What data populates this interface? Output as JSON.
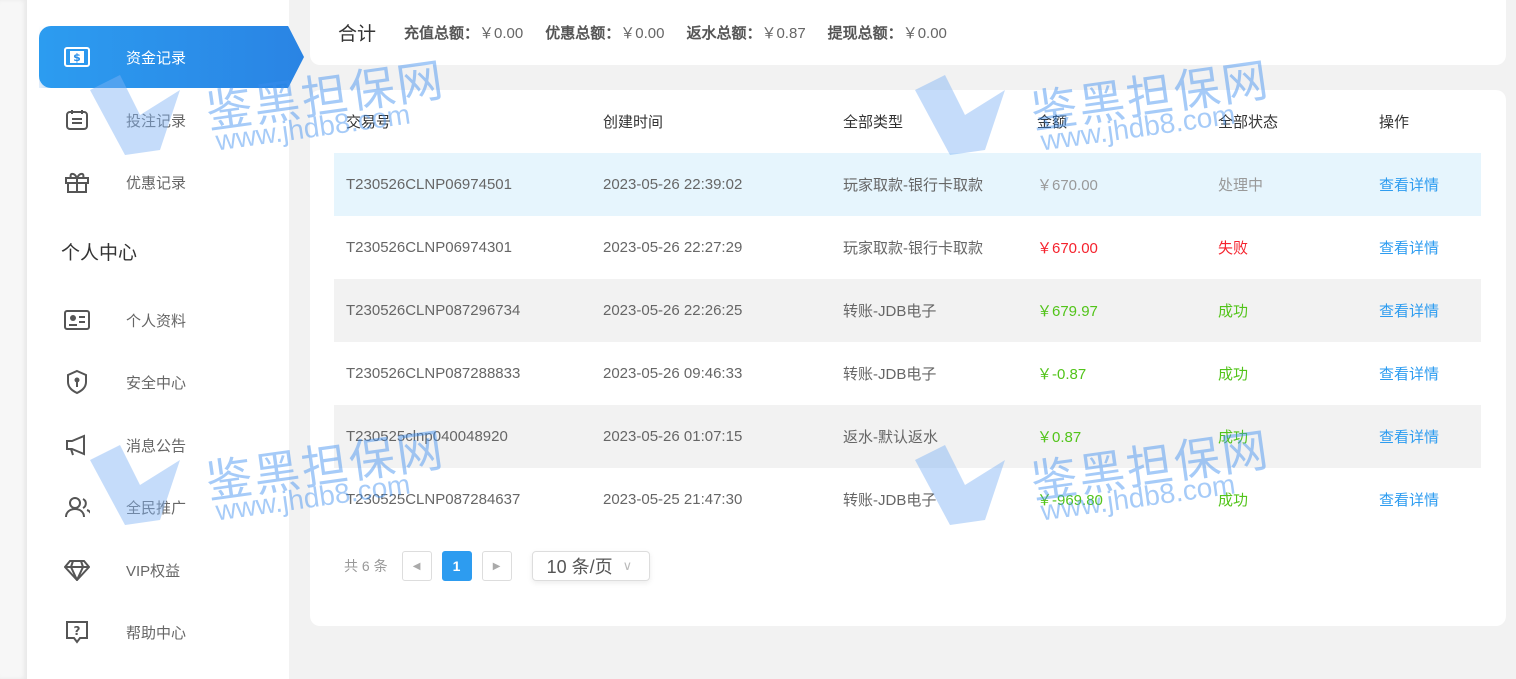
{
  "sidebar": {
    "items": [
      {
        "label": "资金记录",
        "icon": "money-ticket-icon",
        "active": true
      },
      {
        "label": "投注记录",
        "icon": "calendar-list-icon"
      },
      {
        "label": "优惠记录",
        "icon": "gift-icon"
      }
    ],
    "section_title": "个人中心",
    "personal": [
      {
        "label": "个人资料",
        "icon": "id-card-icon"
      },
      {
        "label": "安全中心",
        "icon": "shield-icon"
      },
      {
        "label": "消息公告",
        "icon": "megaphone-icon"
      },
      {
        "label": "全民推广",
        "icon": "users-icon"
      },
      {
        "label": "VIP权益",
        "icon": "diamond-icon"
      },
      {
        "label": "帮助中心",
        "icon": "help-icon"
      }
    ]
  },
  "summary": {
    "title": "合计",
    "items": [
      {
        "label": "充值总额：",
        "value": "￥0.00"
      },
      {
        "label": "优惠总额：",
        "value": "￥0.00"
      },
      {
        "label": "返水总额：",
        "value": "￥0.87"
      },
      {
        "label": "提现总额：",
        "value": "￥0.00"
      }
    ]
  },
  "table": {
    "headers": [
      "交易号",
      "创建时间",
      "全部类型",
      "金额",
      "全部状态",
      "操作"
    ],
    "rows": [
      {
        "id": "T230526CLNP06974501",
        "time": "2023-05-26 22:39:02",
        "type": "玩家取款-银行卡取款",
        "amount": "￥670.00",
        "status": "处理中",
        "action": "查看详情",
        "tone": "pending"
      },
      {
        "id": "T230526CLNP06974301",
        "time": "2023-05-26 22:27:29",
        "type": "玩家取款-银行卡取款",
        "amount": "￥670.00",
        "status": "失败",
        "action": "查看详情",
        "tone": "fail"
      },
      {
        "id": "T230526CLNP087296734",
        "time": "2023-05-26 22:26:25",
        "type": "转账-JDB电子",
        "amount": "￥679.97",
        "status": "成功",
        "action": "查看详情",
        "tone": "success"
      },
      {
        "id": "T230526CLNP087288833",
        "time": "2023-05-26 09:46:33",
        "type": "转账-JDB电子",
        "amount": "￥-0.87",
        "status": "成功",
        "action": "查看详情",
        "tone": "success"
      },
      {
        "id": "T230525clnp040048920",
        "time": "2023-05-26 01:07:15",
        "type": "返水-默认返水",
        "amount": "￥0.87",
        "status": "成功",
        "action": "查看详情",
        "tone": "success"
      },
      {
        "id": "T230525CLNP087284637",
        "time": "2023-05-25 21:47:30",
        "type": "转账-JDB电子",
        "amount": "￥-969.80",
        "status": "成功",
        "action": "查看详情",
        "tone": "success"
      }
    ]
  },
  "pagination": {
    "total": "共 6 条",
    "current": "1",
    "page_size": "10 条/页"
  },
  "colors": {
    "accent": "#2d9cf0",
    "success": "#52c41a",
    "fail": "#f5222d",
    "pending": "#999999",
    "highlight_row": "#e6f5fd",
    "stripe_row": "#f2f2f2"
  },
  "watermark": {
    "text": "鉴黑担保网",
    "url": "www.jhdb8.com"
  }
}
